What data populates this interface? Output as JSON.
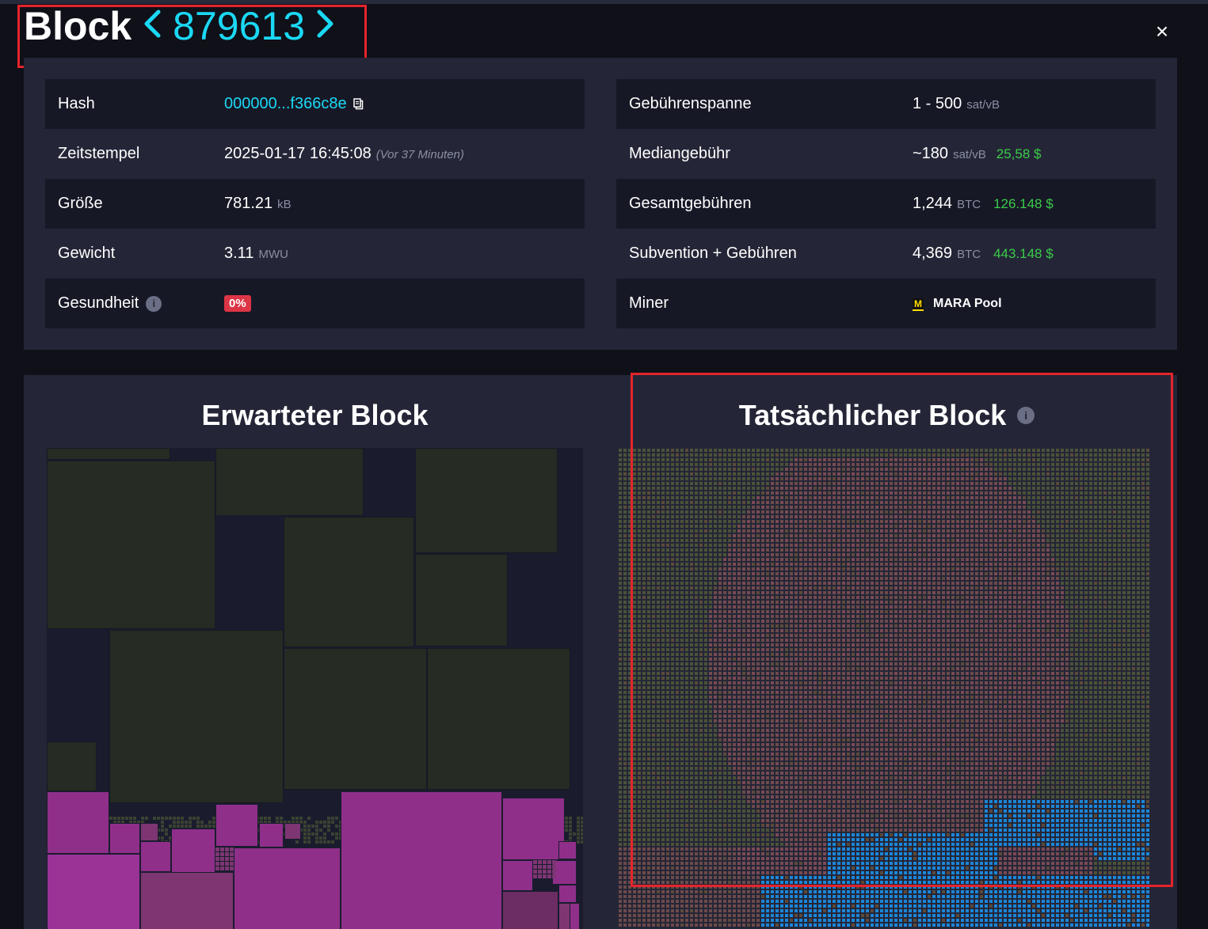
{
  "header": {
    "title_word": "Block",
    "block_height": "879613",
    "prev_icon": "chevron-left-icon",
    "next_icon": "chevron-right-icon",
    "close_icon": "close-icon",
    "close_glyph": "×"
  },
  "details": {
    "left": {
      "hash_label": "Hash",
      "hash_value": "000000...f366c8e",
      "timestamp_label": "Zeitstempel",
      "timestamp_value": "2025-01-17 16:45:08",
      "timestamp_ago": "(Vor 37 Minuten)",
      "size_label": "Größe",
      "size_value": "781.21",
      "size_unit": "kB",
      "weight_label": "Gewicht",
      "weight_value": "3.11",
      "weight_unit": "MWU",
      "health_label": "Gesundheit",
      "health_value": "0%"
    },
    "right": {
      "fee_span_label": "Gebührenspanne",
      "fee_span_value": "1 - 500",
      "fee_span_unit": "sat/vB",
      "median_fee_label": "Mediangebühr",
      "median_fee_value": "~180",
      "median_fee_unit": "sat/vB",
      "median_fee_fiat": "25,58 $",
      "total_fees_label": "Gesamtgebühren",
      "total_fees_value": "1,244",
      "total_fees_unit": "BTC",
      "total_fees_fiat": "126.148 $",
      "subsidy_label": "Subvention + Gebühren",
      "subsidy_value": "4,369",
      "subsidy_unit": "BTC",
      "subsidy_fiat": "443.148 $",
      "miner_label": "Miner",
      "miner_logo_letter": "M",
      "miner_value": "MARA Pool"
    }
  },
  "panels": {
    "expected_title": "Erwarteter Block",
    "actual_title": "Tatsächlicher Block"
  },
  "colors": {
    "accent_cyan": "#1bd8f4",
    "fiat_green": "#3bcc49",
    "health_red": "#dc3545",
    "highlight_red": "#e5242b",
    "tx_green_dark": "#262b23",
    "tx_purple": "#8f2f8a",
    "tx_blue": "#1380d6"
  }
}
